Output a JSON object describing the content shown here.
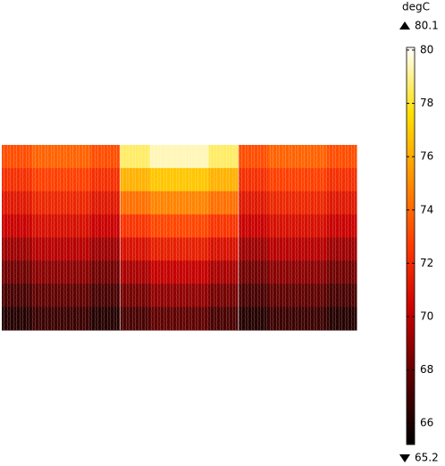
{
  "chart_data": {
    "type": "heatmap",
    "unit": "degC",
    "max": 80.1,
    "min": 65.2,
    "clim": [
      65.2,
      80.1
    ],
    "cticks": [
      66,
      68,
      70,
      72,
      74,
      76,
      78,
      80
    ],
    "colormap": [
      "#000000",
      "#5a0000",
      "#c80000",
      "#ff3a00",
      "#ff9000",
      "#ffe000",
      "#ffffff"
    ],
    "values": [
      [
        73.2,
        73.8,
        73.8,
        73.2,
        78.6,
        79.4,
        79.4,
        78.6,
        73.2,
        73.8,
        73.8,
        73.2
      ],
      [
        72.2,
        72.8,
        72.8,
        72.2,
        76.2,
        76.8,
        76.8,
        76.2,
        72.2,
        72.8,
        72.8,
        72.2
      ],
      [
        71.2,
        71.8,
        71.8,
        71.2,
        74.2,
        74.8,
        74.8,
        74.2,
        71.2,
        71.8,
        71.8,
        71.2
      ],
      [
        70.2,
        70.8,
        70.8,
        70.2,
        72.4,
        73.0,
        73.0,
        72.4,
        70.2,
        70.8,
        70.8,
        70.2
      ],
      [
        69.2,
        69.8,
        69.8,
        69.2,
        70.9,
        71.5,
        71.5,
        70.9,
        69.2,
        69.8,
        69.8,
        69.2
      ],
      [
        68.2,
        68.8,
        68.8,
        68.2,
        69.5,
        70.1,
        70.1,
        69.5,
        68.2,
        68.8,
        68.8,
        68.2
      ],
      [
        67.2,
        67.8,
        67.8,
        67.2,
        68.3,
        68.9,
        68.9,
        68.3,
        67.2,
        67.8,
        67.8,
        67.2
      ],
      [
        66.2,
        66.8,
        66.8,
        66.2,
        67.2,
        67.8,
        67.8,
        67.2,
        66.2,
        66.8,
        66.8,
        66.2
      ]
    ]
  }
}
